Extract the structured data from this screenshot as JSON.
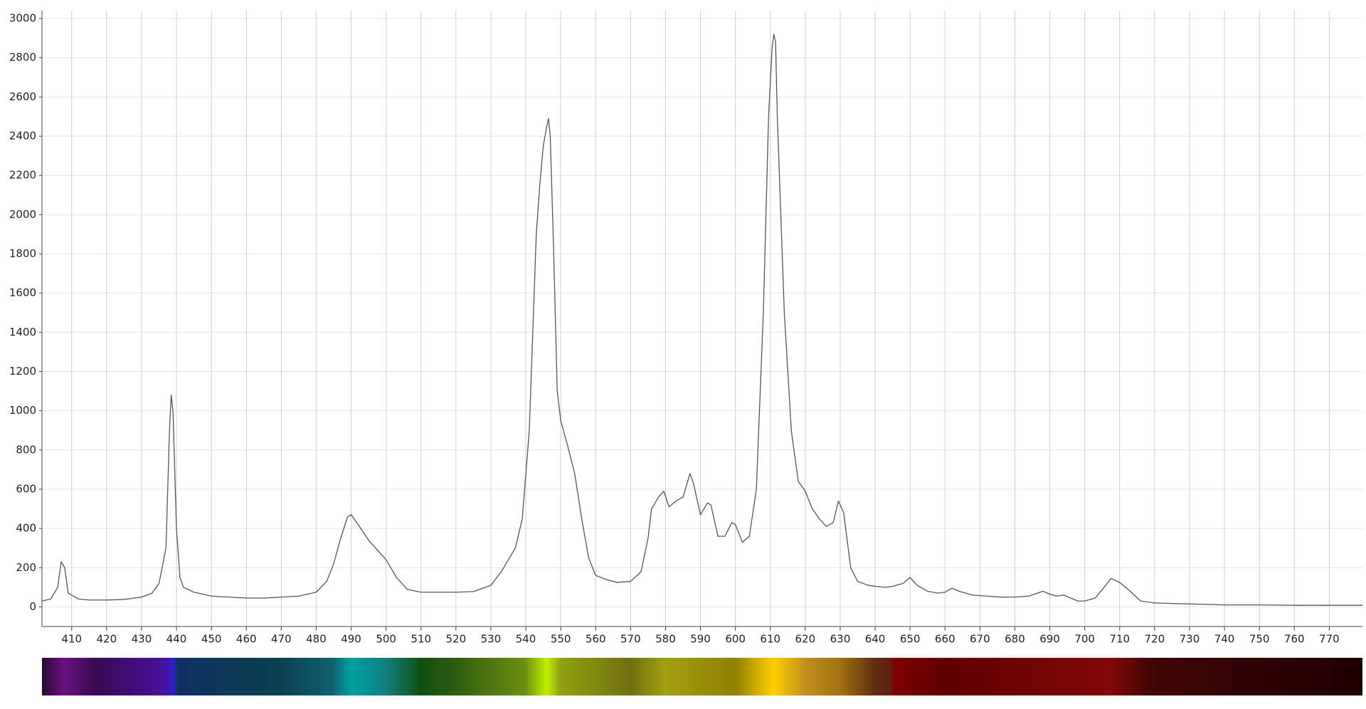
{
  "chart_data": {
    "type": "line",
    "x": [
      401.5,
      404,
      406,
      407,
      408,
      409,
      410,
      412,
      415,
      420,
      425,
      430,
      433,
      435,
      437,
      438,
      438.5,
      439,
      440,
      441,
      442,
      445,
      450,
      455,
      460,
      465,
      470,
      475,
      480,
      483,
      485,
      487,
      489,
      490,
      492,
      495,
      498,
      500,
      503,
      506,
      510,
      515,
      520,
      525,
      530,
      533,
      535,
      537,
      539,
      541,
      542,
      543,
      544,
      545,
      546,
      546.5,
      547,
      548,
      549,
      550,
      552,
      554,
      556,
      558,
      560,
      563,
      566,
      570,
      573,
      575,
      576,
      578,
      579.5,
      581,
      583,
      585,
      587,
      588,
      590,
      592,
      593,
      595,
      597,
      599,
      600,
      602,
      604,
      606,
      608,
      609.5,
      610.5,
      611,
      611.5,
      612,
      613,
      614,
      616,
      618,
      620,
      622,
      624,
      626,
      628,
      629.5,
      631,
      633,
      635,
      638,
      640,
      643,
      645,
      648,
      650,
      652,
      655,
      658,
      660,
      662,
      664,
      668,
      672,
      676,
      680,
      684,
      688,
      690,
      692,
      694,
      696,
      698,
      700,
      703,
      706,
      707.5,
      710,
      713,
      716,
      720,
      730,
      740,
      750,
      760,
      770,
      779.5
    ],
    "values": [
      30,
      40,
      100,
      230,
      200,
      70,
      60,
      40,
      35,
      35,
      38,
      50,
      70,
      120,
      300,
      900,
      1080,
      1000,
      400,
      150,
      100,
      75,
      55,
      50,
      45,
      45,
      50,
      55,
      75,
      130,
      220,
      350,
      460,
      470,
      420,
      340,
      280,
      240,
      150,
      90,
      75,
      75,
      75,
      78,
      110,
      180,
      240,
      300,
      450,
      900,
      1400,
      1900,
      2150,
      2350,
      2450,
      2490,
      2400,
      1800,
      1100,
      950,
      820,
      680,
      450,
      250,
      160,
      140,
      125,
      130,
      180,
      350,
      500,
      560,
      590,
      510,
      540,
      560,
      680,
      630,
      470,
      530,
      520,
      360,
      360,
      430,
      420,
      330,
      360,
      600,
      1500,
      2500,
      2850,
      2920,
      2880,
      2500,
      2000,
      1500,
      900,
      640,
      590,
      500,
      450,
      410,
      430,
      540,
      480,
      200,
      130,
      110,
      105,
      100,
      105,
      120,
      150,
      110,
      80,
      70,
      75,
      95,
      80,
      60,
      55,
      50,
      50,
      55,
      80,
      65,
      55,
      60,
      45,
      30,
      30,
      45,
      110,
      145,
      125,
      80,
      30,
      20,
      15,
      10,
      10,
      8,
      8,
      8
    ],
    "color": "#555555",
    "xlim": [
      401.5,
      779.5
    ],
    "ylim": [
      -100,
      3040
    ],
    "xticks": [
      410,
      420,
      430,
      440,
      450,
      460,
      470,
      480,
      490,
      500,
      510,
      520,
      530,
      540,
      550,
      560,
      570,
      580,
      590,
      600,
      610,
      620,
      630,
      640,
      650,
      660,
      670,
      680,
      690,
      700,
      710,
      720,
      730,
      740,
      750,
      760,
      770
    ],
    "yticks": [
      0,
      200,
      400,
      600,
      800,
      1000,
      1200,
      1400,
      1600,
      1800,
      2000,
      2200,
      2400,
      2600,
      2800,
      3000
    ],
    "grid": true
  }
}
